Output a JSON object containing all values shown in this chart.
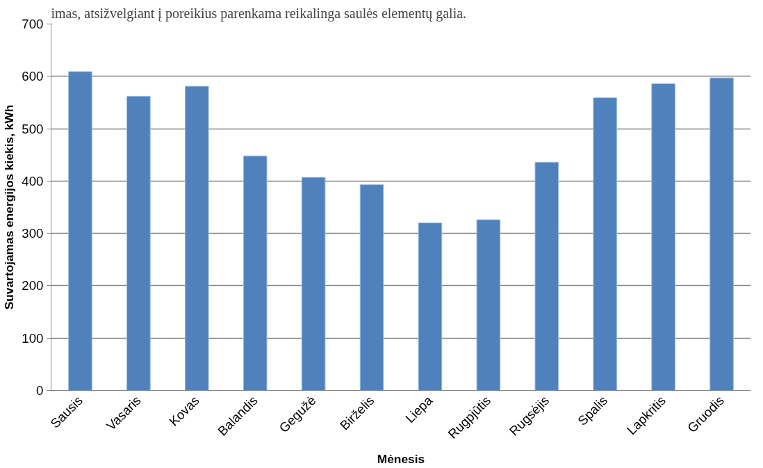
{
  "chart_data": {
    "type": "bar",
    "xlabel": "Mėnesis",
    "ylabel": "Suvartojamas energijos kiekis, kWh",
    "annotations": [
      "imas, atsižvelgiant į poreikius parenkama reikalinga saulės elementų galia."
    ],
    "categories": [
      "Sausis",
      "Vasaris",
      "Kovas",
      "Balandis",
      "Gegužė",
      "Birželis",
      "Liepa",
      "Rugpjūtis",
      "Rugsėjis",
      "Spalis",
      "Lapkritis",
      "Gruodis"
    ],
    "values": [
      609,
      562,
      581,
      448,
      407,
      393,
      320,
      326,
      436,
      559,
      586,
      597
    ],
    "color": "#4f81bd",
    "ylim": [
      0,
      700
    ],
    "yticks": [
      0,
      100,
      200,
      300,
      400,
      500,
      600,
      700
    ],
    "grid": "y"
  }
}
